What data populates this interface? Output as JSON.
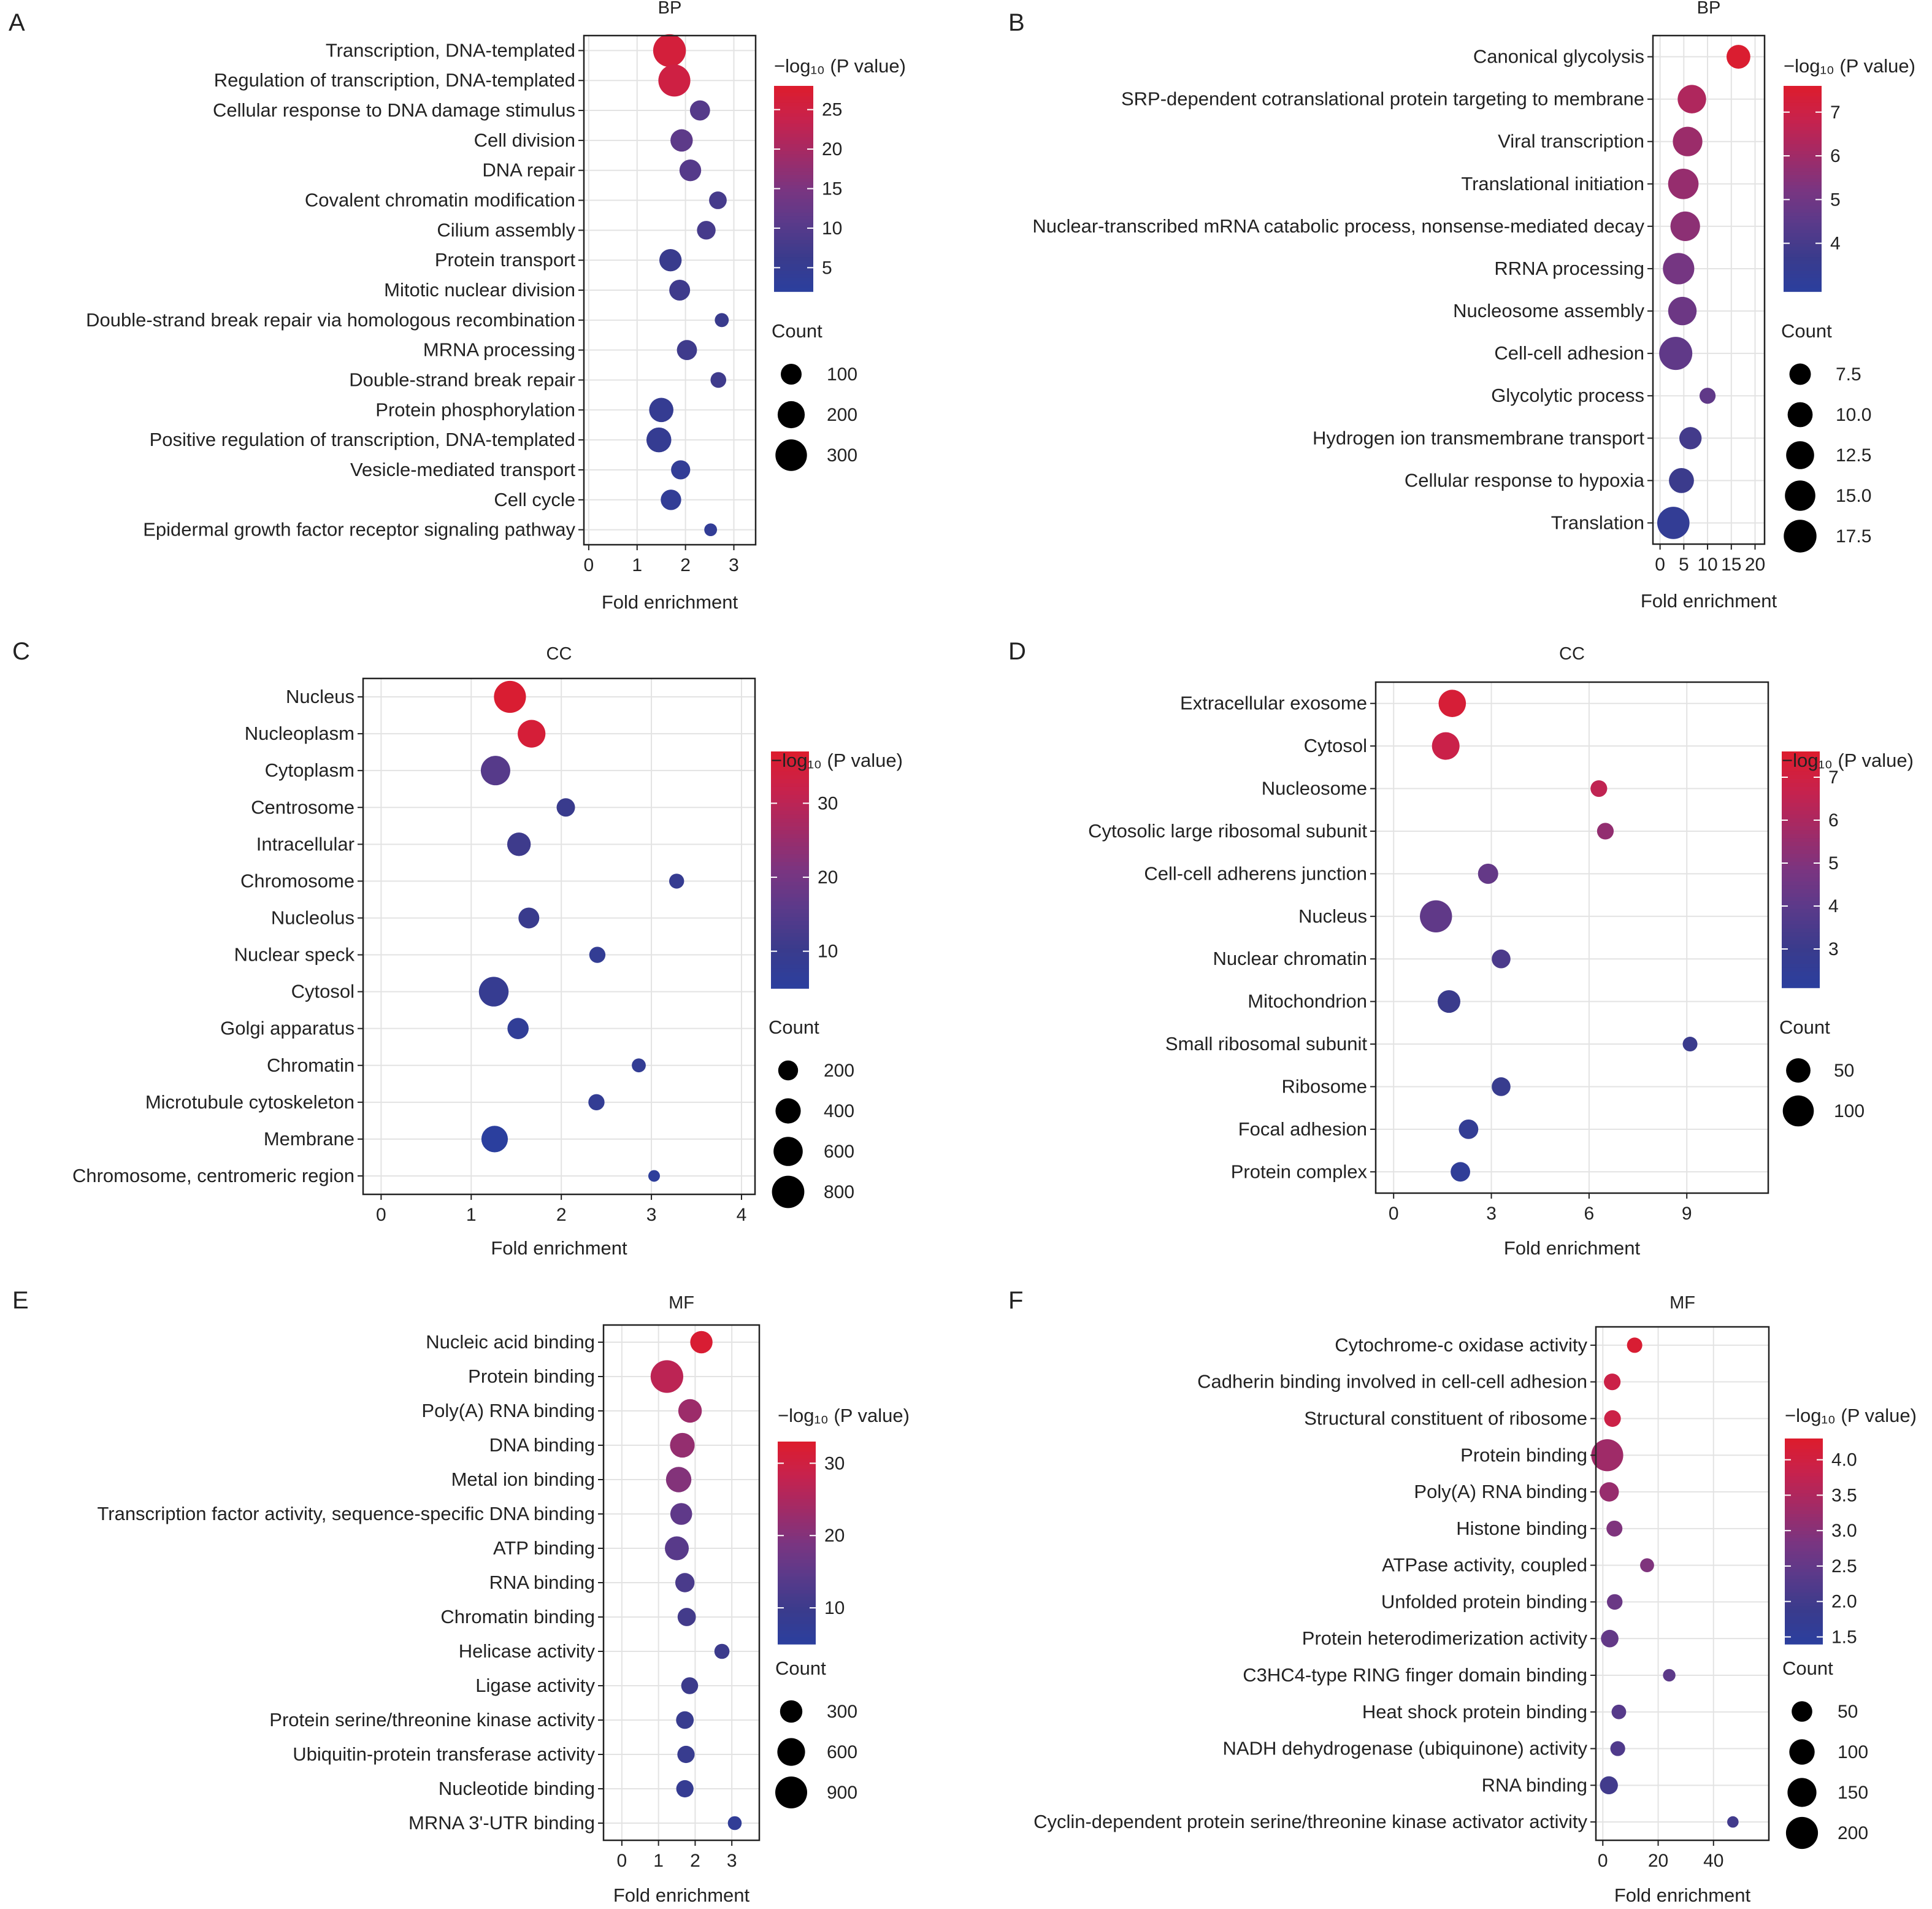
{
  "colors": {
    "colorbar": [
      "#2b3f9e",
      "#3a3b8c",
      "#5a3a8a",
      "#7b3580",
      "#a22a66",
      "#c7224d",
      "#dd1c2c"
    ],
    "axis": "#222222",
    "grid": "#e3e3e3"
  },
  "chart_data": [
    {
      "panel_letter": "A",
      "type": "scatter",
      "title": "BP",
      "xlabel": "Fold enrichment",
      "xticks": [
        0,
        1,
        2,
        3
      ],
      "xlim": [
        -0.1,
        3.45
      ],
      "grid": true,
      "legend_placement": "right",
      "color_title": "−log₁₀ (P value)",
      "color_ticks": [
        25,
        20,
        15,
        10,
        5
      ],
      "color_range": [
        2,
        28
      ],
      "size_title": "Count",
      "size_ticks": [
        100,
        200,
        300
      ],
      "size_range": [
        30,
        340
      ],
      "categories": [
        "Transcription, DNA-templated",
        "Regulation of transcription, DNA-templated",
        "Cellular response to DNA damage stimulus",
        "Cell division",
        "DNA repair",
        "Covalent chromatin modification",
        "Cilium assembly",
        "Protein transport",
        "Mitotic nuclear division",
        "Double-strand break repair via homologous recombination",
        "MRNA processing",
        "Double-strand break repair",
        "Protein phosphorylation",
        "Positive regulation of transcription, DNA-templated",
        "Vesicle-mediated transport",
        "Cell cycle",
        "Epidermal growth factor receptor signaling pathway"
      ],
      "x": [
        1.67,
        1.77,
        2.3,
        1.92,
        2.1,
        2.67,
        2.43,
        1.69,
        1.88,
        2.75,
        2.03,
        2.68,
        1.5,
        1.45,
        1.9,
        1.7,
        2.52
      ],
      "color_values": [
        26,
        25,
        10,
        11,
        10,
        8,
        8,
        6,
        7,
        6,
        7,
        7,
        5,
        5,
        4,
        4,
        4
      ],
      "count": [
        330,
        310,
        90,
        120,
        110,
        65,
        75,
        120,
        100,
        40,
        90,
        50,
        150,
        160,
        80,
        95,
        35
      ]
    },
    {
      "panel_letter": "B",
      "type": "scatter",
      "title": "BP",
      "xlabel": "Fold enrichment",
      "xticks": [
        0,
        5,
        10,
        15,
        20
      ],
      "xticklabels": [
        "0",
        "5",
        "10",
        "15",
        "20"
      ],
      "xlim": [
        -1.5,
        22
      ],
      "grid": true,
      "legend_placement": "right",
      "color_title": "−log₁₀ (P value)",
      "color_ticks": [
        7,
        6,
        5,
        4
      ],
      "color_range": [
        2.9,
        7.6
      ],
      "size_title": "Count",
      "size_ticks": [
        7.5,
        10.0,
        12.5,
        15.0,
        17.5
      ],
      "size_tick_labels": [
        "7.5",
        "10.0",
        "12.5",
        "15.0",
        "17.5"
      ],
      "size_range": [
        4,
        18
      ],
      "categories": [
        "Canonical glycolysis",
        "SRP-dependent cotranslational protein targeting to membrane",
        "Viral transcription",
        "Translational initiation",
        "Nuclear-transcribed mRNA catabolic process, nonsense-mediated decay",
        "RRNA processing",
        "Nucleosome assembly",
        "Cell-cell adhesion",
        "Glycolytic process",
        "Hydrogen ion transmembrane transport",
        "Cellular response to hypoxia",
        "Translation"
      ],
      "x": [
        16.5,
        6.7,
        5.8,
        4.9,
        5.3,
        3.9,
        4.7,
        3.3,
        10.0,
        6.4,
        4.5,
        2.8
      ],
      "color_values": [
        7.5,
        6.3,
        5.9,
        5.8,
        5.6,
        5.1,
        4.9,
        4.6,
        4.6,
        3.9,
        3.7,
        3.3
      ],
      "count": [
        9,
        13,
        14,
        15,
        14,
        16,
        13,
        18,
        5,
        8,
        10,
        17
      ]
    },
    {
      "panel_letter": "C",
      "type": "scatter",
      "title": "CC",
      "xlabel": "Fold enrichment",
      "xticks": [
        0,
        1,
        2,
        3,
        4
      ],
      "xlim": [
        -0.2,
        4.15
      ],
      "grid": true,
      "legend_placement": "right",
      "color_title": "−log₁₀ (P value)",
      "color_ticks": [
        30,
        20,
        10
      ],
      "color_range": [
        5,
        37
      ],
      "size_title": "Count",
      "size_ticks": [
        200,
        400,
        600,
        800
      ],
      "size_range": [
        50,
        850
      ],
      "categories": [
        "Nucleus",
        "Nucleoplasm",
        "Cytoplasm",
        "Centrosome",
        "Intracellular",
        "Chromosome",
        "Nucleolus",
        "Nuclear speck",
        "Cytosol",
        "Golgi apparatus",
        "Chromatin",
        "Microtubule cytoskeleton",
        "Membrane",
        "Chromosome, centromeric region"
      ],
      "x": [
        1.43,
        1.67,
        1.27,
        2.05,
        1.53,
        3.28,
        1.64,
        2.4,
        1.25,
        1.52,
        2.86,
        2.39,
        1.26,
        3.03
      ],
      "color_values": [
        36,
        35,
        15,
        10,
        11,
        9,
        10,
        8,
        9,
        7,
        8,
        8,
        5,
        6
      ],
      "count": [
        780,
        520,
        620,
        160,
        330,
        90,
        230,
        110,
        630,
        240,
        75,
        110,
        460,
        55
      ]
    },
    {
      "panel_letter": "D",
      "type": "scatter",
      "title": "CC",
      "xlabel": "Fold enrichment",
      "xticks": [
        0,
        3,
        6,
        9
      ],
      "xlim": [
        -0.55,
        11.5
      ],
      "grid": true,
      "legend_placement": "right",
      "color_title": "−log₁₀ (P value)",
      "color_ticks": [
        7,
        6,
        5,
        4,
        3
      ],
      "color_range": [
        2.1,
        7.6
      ],
      "size_title": "Count",
      "size_ticks": [
        50,
        100
      ],
      "size_range": [
        5,
        120
      ],
      "categories": [
        "Extracellular exosome",
        "Cytosol",
        "Nucleosome",
        "Cytosolic large ribosomal subunit",
        "Cell-cell adherens junction",
        "Nucleus",
        "Nuclear chromatin",
        "Mitochondrion",
        "Small ribosomal subunit",
        "Ribosome",
        "Focal adhesion",
        "Protein complex"
      ],
      "x": [
        1.8,
        1.6,
        6.3,
        6.5,
        2.9,
        1.3,
        3.3,
        1.7,
        9.1,
        3.3,
        2.3,
        2.05
      ],
      "color_values": [
        7.3,
        6.8,
        6.5,
        5.4,
        4.2,
        4.1,
        3.5,
        3.0,
        3.0,
        2.9,
        2.6,
        2.4
      ],
      "count": [
        70,
        72,
        15,
        15,
        28,
        110,
        22,
        40,
        10,
        22,
        25,
        25
      ]
    },
    {
      "panel_letter": "E",
      "type": "scatter",
      "title": "MF",
      "xlabel": "Fold enrichment",
      "xticks": [
        0,
        1,
        2,
        3
      ],
      "xlim": [
        -0.5,
        3.75
      ],
      "grid": true,
      "legend_placement": "right",
      "color_title": "−log₁₀ (P value)",
      "color_ticks": [
        30,
        20,
        10
      ],
      "color_range": [
        5,
        33
      ],
      "size_title": "Count",
      "size_ticks": [
        300,
        600,
        900
      ],
      "size_range": [
        20,
        1000
      ],
      "categories": [
        "Nucleic acid binding",
        "Protein binding",
        "Poly(A) RNA binding",
        "DNA binding",
        "Metal ion binding",
        "Transcription factor activity, sequence-specific DNA binding",
        "ATP binding",
        "RNA binding",
        "Chromatin binding",
        "Helicase activity",
        "Ligase activity",
        "Protein serine/threonine kinase activity",
        "Ubiquitin-protein transferase activity",
        "Nucleotide binding",
        "MRNA 3'-UTR binding"
      ],
      "x": [
        2.17,
        1.23,
        1.86,
        1.65,
        1.55,
        1.62,
        1.5,
        1.72,
        1.77,
        2.73,
        1.85,
        1.72,
        1.75,
        1.72,
        3.08
      ],
      "color_values": [
        32,
        27,
        23,
        22,
        20,
        15,
        14,
        12,
        11,
        10,
        10,
        9,
        9,
        8,
        7
      ],
      "count": [
        300,
        960,
        360,
        420,
        460,
        280,
        380,
        180,
        150,
        70,
        110,
        130,
        120,
        120,
        50
      ]
    },
    {
      "panel_letter": "F",
      "type": "scatter",
      "title": "MF",
      "xlabel": "Fold enrichment",
      "xticks": [
        0,
        20,
        40
      ],
      "xlim": [
        -2.5,
        60
      ],
      "grid": true,
      "legend_placement": "right",
      "color_title": "−log₁₀ (P value)",
      "color_ticks": [
        4.0,
        3.5,
        3.0,
        2.5,
        2.0,
        1.5
      ],
      "color_tick_labels": [
        "4.0",
        "3.5",
        "3.0",
        "2.5",
        "2.0",
        "1.5"
      ],
      "color_range": [
        1.4,
        4.3
      ],
      "size_title": "Count",
      "size_ticks": [
        50,
        100,
        150,
        200
      ],
      "size_range": [
        3,
        220
      ],
      "categories": [
        "Cytochrome-c oxidase activity",
        "Cadherin binding involved in cell-cell adhesion",
        "Structural constituent of ribosome",
        "Protein binding",
        "Poly(A) RNA binding",
        "Histone binding",
        "ATPase activity, coupled",
        "Unfolded protein binding",
        "Protein heterodimerization activity",
        "C3HC4-type RING finger domain binding",
        "Heat shock protein binding",
        "NADH dehydrogenase (ubiquinone) activity",
        "RNA binding",
        "Cyclin-dependent protein serine/threonine kinase activator activity"
      ],
      "x": [
        11.5,
        3.4,
        3.5,
        1.6,
        2.3,
        4.2,
        16.0,
        4.3,
        2.5,
        24.0,
        5.8,
        5.4,
        2.2,
        47.0
      ],
      "color_values": [
        4.2,
        3.9,
        3.9,
        3.3,
        3.2,
        2.9,
        2.9,
        2.6,
        2.5,
        2.4,
        2.3,
        2.2,
        2.0,
        2.0
      ],
      "count": [
        15,
        22,
        22,
        200,
        40,
        18,
        10,
        16,
        27,
        6,
        12,
        13,
        30,
        4
      ]
    }
  ]
}
